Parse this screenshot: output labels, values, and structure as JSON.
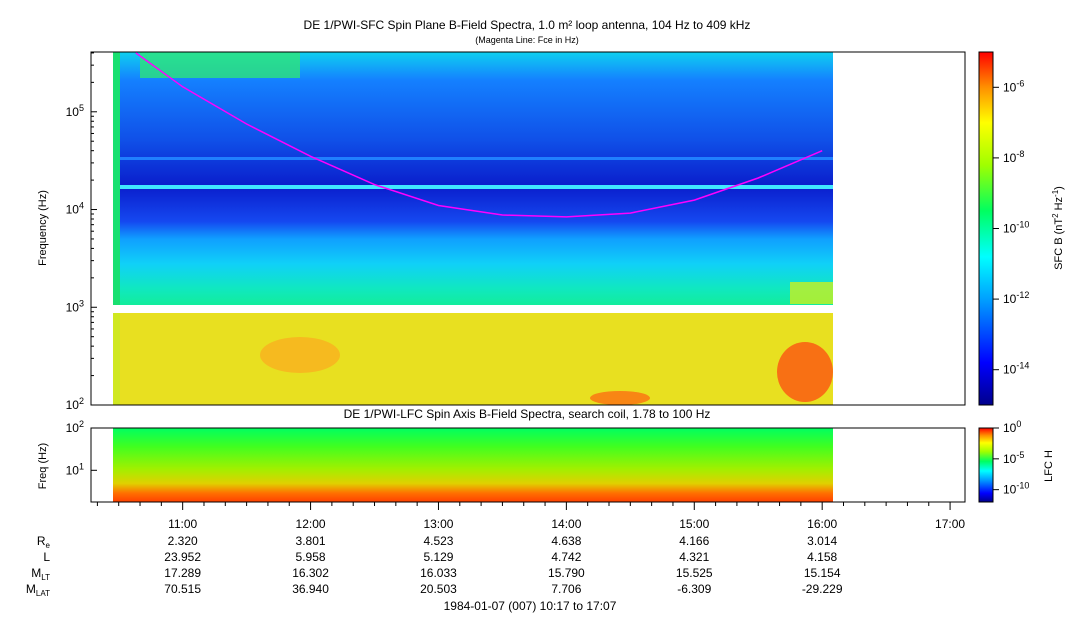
{
  "chart_data": [
    {
      "type": "heatmap",
      "title": "DE 1/PWI-SFC  Spin Plane B-Field Spectra, 1.0 m² loop antenna, 104 Hz to 409 kHz",
      "subtitle": "(Magenta Line: Fce in Hz)",
      "ylabel": "Frequency (Hz)",
      "yscale": "log",
      "ylim": [
        100,
        409000
      ],
      "yticks": [
        "10^2",
        "10^3",
        "10^4",
        "10^5"
      ],
      "xlim": [
        "10:17",
        "17:07"
      ],
      "data_coverage": [
        "10:27",
        "16:06"
      ],
      "gap_hz": [
        930,
        1100
      ],
      "colorbar": {
        "label": "SFC B (nT^2 Hz^-1)",
        "scale": "log",
        "range": [
          "10^-15",
          "10^-5"
        ],
        "ticks": [
          "10^-6",
          "10^-8",
          "10^-10",
          "10^-12",
          "10^-14"
        ]
      },
      "series": [
        {
          "name": "Fce in Hz",
          "color": "#ff00ff",
          "x": [
            "10:38",
            "11:00",
            "11:30",
            "12:00",
            "12:30",
            "13:00",
            "13:30",
            "14:00",
            "14:30",
            "15:00",
            "15:30",
            "16:00"
          ],
          "y": [
            400000,
            180000,
            75000,
            35000,
            18000,
            11000,
            8800,
            8400,
            9200,
            12500,
            21000,
            40000
          ]
        }
      ]
    },
    {
      "type": "heatmap",
      "title": "DE 1/PWI-LFC  Spin Axis B-Field Spectra, search coil, 1.78 to 100 Hz",
      "ylabel": "Freq (Hz)",
      "yscale": "log",
      "ylim": [
        1.78,
        100
      ],
      "yticks": [
        "10^1",
        "10^2"
      ],
      "colorbar": {
        "label": "LFC H",
        "scale": "log",
        "ticks": [
          "10^0",
          "10^-5",
          "10^-10"
        ]
      }
    }
  ],
  "time_axis": {
    "ticks": [
      "11:00",
      "12:00",
      "13:00",
      "14:00",
      "15:00",
      "16:00",
      "17:00"
    ],
    "rows": [
      {
        "label": "R",
        "sub": "e",
        "values": [
          "2.320",
          "3.801",
          "4.523",
          "4.638",
          "4.166",
          "3.014"
        ]
      },
      {
        "label": "L",
        "sub": "",
        "values": [
          "23.952",
          "5.958",
          "5.129",
          "4.742",
          "4.321",
          "4.158"
        ]
      },
      {
        "label": "M",
        "sub": "LT",
        "values": [
          "17.289",
          "16.302",
          "16.033",
          "15.790",
          "15.525",
          "15.154"
        ]
      },
      {
        "label": "M",
        "sub": "LAT",
        "values": [
          "70.515",
          "36.940",
          "20.503",
          "7.706",
          "-6.309",
          "-29.229"
        ]
      }
    ],
    "date_label": "1984-01-07 (007) 10:17 to 17:07"
  }
}
